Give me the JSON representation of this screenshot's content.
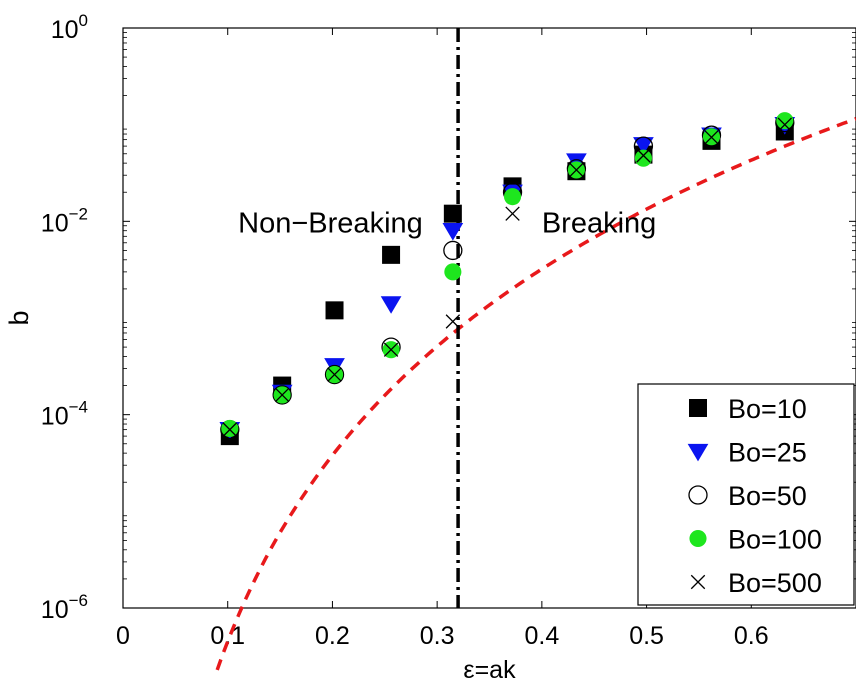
{
  "chart_data": {
    "type": "scatter",
    "xlabel": "ε=ak",
    "ylabel": "b",
    "xlim": [
      0,
      0.7
    ],
    "ylim_log10": [
      -6,
      0
    ],
    "yscale": "log",
    "xticks": [
      {
        "v": 0,
        "label": "0"
      },
      {
        "v": 0.1,
        "label": "0.1"
      },
      {
        "v": 0.2,
        "label": "0.2"
      },
      {
        "v": 0.3,
        "label": "0.3"
      },
      {
        "v": 0.4,
        "label": "0.4"
      },
      {
        "v": 0.5,
        "label": "0.5"
      },
      {
        "v": 0.6,
        "label": "0.6"
      }
    ],
    "yticks": [
      {
        "exp": 0,
        "base": "10",
        "sup": "0"
      },
      {
        "exp": -2,
        "base": "10",
        "sup": "−2"
      },
      {
        "exp": -4,
        "base": "10",
        "sup": "−4"
      },
      {
        "exp": -6,
        "base": "10",
        "sup": "−6"
      }
    ],
    "threshold_x": 0.32,
    "regions": [
      {
        "label": "Non−Breaking",
        "x": 0.11,
        "logy": -2.0
      },
      {
        "label": "Breaking",
        "x": 0.4,
        "logy": -2.0
      }
    ],
    "fit_curve": {
      "style": "dashed",
      "color": "#e8191b",
      "from_x": 0.09,
      "to_x": 0.7
    },
    "legend_position": "bottom-right",
    "series": [
      {
        "name": "Bo=10",
        "marker": "square",
        "color": "#000000",
        "x": [
          0.102,
          0.152,
          0.202,
          0.256,
          0.315,
          0.372,
          0.433,
          0.497,
          0.562,
          0.632
        ],
        "y": [
          6e-05,
          0.0002,
          0.0012,
          0.0045,
          0.012,
          0.023,
          0.033,
          0.049,
          0.068,
          0.085
        ]
      },
      {
        "name": "Bo=25",
        "marker": "triangle-down",
        "color": "#0a14f0",
        "x": [
          0.102,
          0.152,
          0.202,
          0.256,
          0.315,
          0.372,
          0.433,
          0.497,
          0.562,
          0.632
        ],
        "y": [
          7e-05,
          0.00017,
          0.00032,
          0.0014,
          0.008,
          0.02,
          0.042,
          0.062,
          0.078,
          0.1
        ]
      },
      {
        "name": "Bo=50",
        "marker": "circle-open",
        "color": "#000000",
        "x": [
          0.102,
          0.152,
          0.202,
          0.256,
          0.315,
          0.372,
          0.433,
          0.497,
          0.562,
          0.632
        ],
        "y": [
          7e-05,
          0.00016,
          0.00026,
          0.0005,
          0.005,
          0.02,
          0.035,
          0.06,
          0.078,
          0.105
        ]
      },
      {
        "name": "Bo=100",
        "marker": "circle-filled",
        "color": "#1ee61e",
        "x": [
          0.102,
          0.152,
          0.202,
          0.256,
          0.315,
          0.372,
          0.433,
          0.497,
          0.562,
          0.632
        ],
        "y": [
          7.2e-05,
          0.00016,
          0.00026,
          0.00047,
          0.003,
          0.018,
          0.034,
          0.045,
          0.075,
          0.11
        ]
      },
      {
        "name": "Bo=500",
        "marker": "x",
        "color": "#000000",
        "x": [
          0.102,
          0.152,
          0.202,
          0.256,
          0.315,
          0.372,
          0.433,
          0.497,
          0.562,
          0.632
        ],
        "y": [
          7e-05,
          0.00016,
          0.00026,
          0.00047,
          0.00092,
          0.012,
          0.034,
          0.048,
          0.074,
          0.1
        ]
      }
    ]
  }
}
